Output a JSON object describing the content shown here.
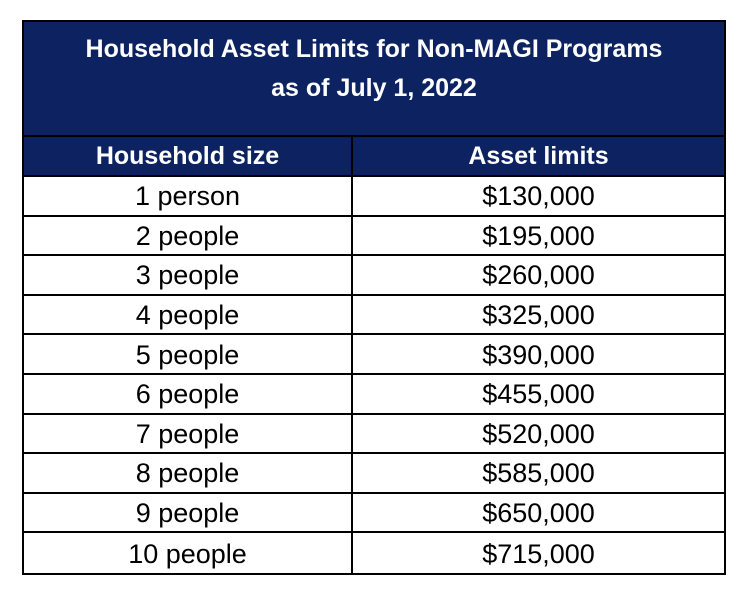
{
  "table": {
    "title_line1": "Household Asset Limits for Non-MAGI Programs",
    "title_line2": "as of July 1, 2022",
    "header": {
      "household_size": "Household size",
      "asset_limits": "Asset limits"
    },
    "rows": [
      {
        "size": "1 person",
        "limit": "$130,000"
      },
      {
        "size": "2 people",
        "limit": "$195,000"
      },
      {
        "size": "3 people",
        "limit": "$260,000"
      },
      {
        "size": "4 people",
        "limit": "$325,000"
      },
      {
        "size": "5 people",
        "limit": "$390,000"
      },
      {
        "size": "6 people",
        "limit": "$455,000"
      },
      {
        "size": "7 people",
        "limit": "$520,000"
      },
      {
        "size": "8 people",
        "limit": "$585,000"
      },
      {
        "size": "9 people",
        "limit": "$650,000"
      },
      {
        "size": "10 people",
        "limit": "$715,000"
      }
    ]
  },
  "colors": {
    "header_background": "#0d2361",
    "header_text": "#ffffff",
    "border": "#000000"
  }
}
